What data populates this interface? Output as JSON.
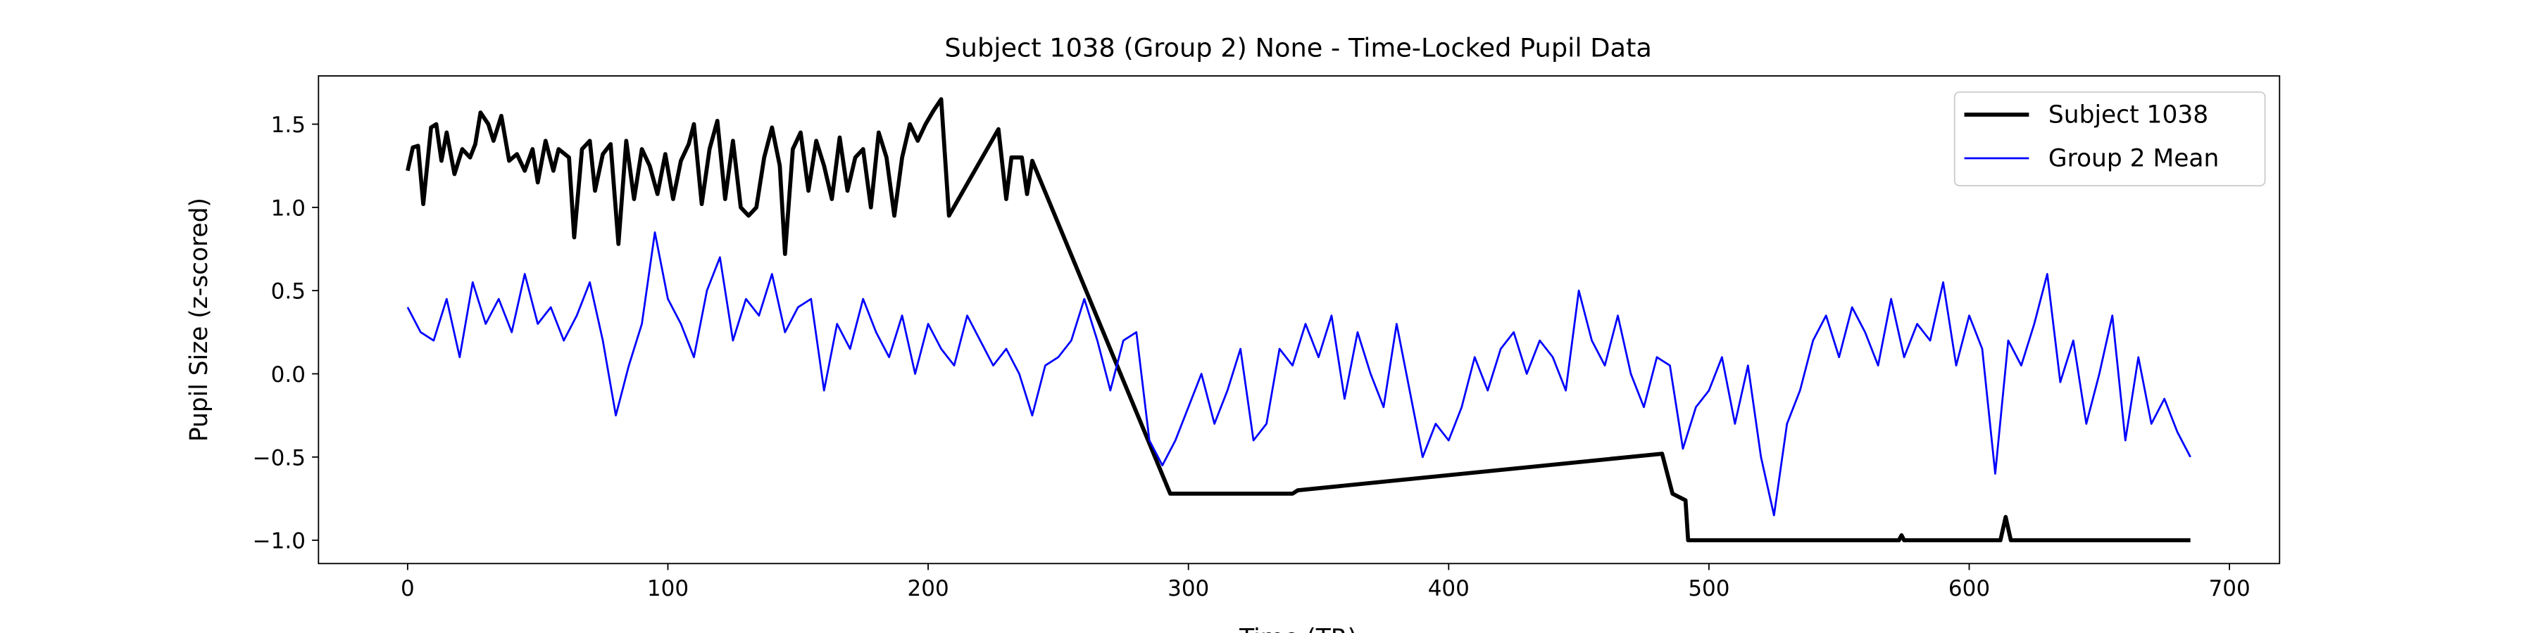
{
  "chart_data": {
    "type": "line",
    "title": "Subject 1038 (Group 2) None - Time-Locked Pupil Data",
    "x_label": "Time (TR)",
    "y_label": "Pupil Size (z-scored)",
    "xlim": [
      -34.25,
      719.25
    ],
    "ylim": [
      -1.14,
      1.79
    ],
    "xticks": [
      0,
      100,
      200,
      300,
      400,
      500,
      600,
      700
    ],
    "yticks": [
      {
        "value": -1.0,
        "label": "−1.0"
      },
      {
        "value": -0.5,
        "label": "−0.5"
      },
      {
        "value": 0.0,
        "label": "0.0"
      },
      {
        "value": 0.5,
        "label": "0.5"
      },
      {
        "value": 1.0,
        "label": "1.0"
      },
      {
        "value": 1.5,
        "label": "1.5"
      }
    ],
    "legend": "upper right",
    "grid": false,
    "series": [
      {
        "name": "Subject 1038",
        "color": "#000000",
        "linewidth": 2.5,
        "x": [
          0,
          2,
          4,
          6,
          9,
          11,
          13,
          15,
          18,
          21,
          24,
          26,
          28,
          31,
          33,
          36,
          39,
          42,
          45,
          48,
          50,
          53,
          56,
          58,
          62,
          64,
          67,
          70,
          72,
          75,
          78,
          81,
          84,
          87,
          90,
          93,
          96,
          99,
          102,
          105,
          108,
          110,
          113,
          116,
          119,
          122,
          125,
          128,
          131,
          134,
          137,
          140,
          143,
          145,
          148,
          151,
          154,
          157,
          160,
          163,
          166,
          169,
          172,
          175,
          178,
          181,
          184,
          187,
          190,
          193,
          196,
          199,
          202,
          205,
          208,
          227,
          230,
          232,
          236,
          238,
          240,
          293,
          340,
          342,
          482,
          486,
          491,
          492,
          500,
          573,
          574,
          575,
          612,
          614,
          616,
          685
        ],
        "values": [
          1.22,
          1.36,
          1.37,
          1.02,
          1.48,
          1.5,
          1.28,
          1.45,
          1.2,
          1.35,
          1.3,
          1.38,
          1.57,
          1.5,
          1.4,
          1.55,
          1.28,
          1.32,
          1.22,
          1.35,
          1.15,
          1.4,
          1.22,
          1.35,
          1.3,
          0.82,
          1.35,
          1.4,
          1.1,
          1.32,
          1.38,
          0.78,
          1.4,
          1.05,
          1.35,
          1.25,
          1.08,
          1.32,
          1.05,
          1.28,
          1.38,
          1.5,
          1.02,
          1.35,
          1.52,
          1.05,
          1.4,
          1.0,
          0.95,
          1.0,
          1.3,
          1.48,
          1.25,
          0.72,
          1.35,
          1.45,
          1.1,
          1.4,
          1.25,
          1.05,
          1.42,
          1.1,
          1.3,
          1.35,
          1.0,
          1.45,
          1.3,
          0.95,
          1.3,
          1.5,
          1.4,
          1.5,
          1.58,
          1.65,
          0.95,
          1.47,
          1.05,
          1.3,
          1.3,
          1.08,
          1.28,
          -0.72,
          -0.72,
          -0.7,
          -0.48,
          -0.72,
          -0.76,
          -1.0,
          -1.0,
          -1.0,
          -0.97,
          -1.0,
          -1.0,
          -0.86,
          -1.0,
          -1.0
        ]
      },
      {
        "name": "Group 2 Mean",
        "color": "#0000ff",
        "linewidth": 1.2,
        "x": [
          0,
          5,
          10,
          15,
          20,
          25,
          30,
          35,
          40,
          45,
          50,
          55,
          60,
          65,
          70,
          75,
          80,
          85,
          90,
          95,
          100,
          105,
          110,
          115,
          120,
          125,
          130,
          135,
          140,
          145,
          150,
          155,
          160,
          165,
          170,
          175,
          180,
          185,
          190,
          195,
          200,
          205,
          210,
          215,
          220,
          225,
          230,
          235,
          240,
          245,
          250,
          255,
          260,
          265,
          270,
          275,
          280,
          285,
          290,
          295,
          300,
          305,
          310,
          315,
          320,
          325,
          330,
          335,
          340,
          345,
          350,
          355,
          360,
          365,
          370,
          375,
          380,
          385,
          390,
          395,
          400,
          405,
          410,
          415,
          420,
          425,
          430,
          435,
          440,
          445,
          450,
          455,
          460,
          465,
          470,
          475,
          480,
          485,
          490,
          495,
          500,
          505,
          510,
          515,
          520,
          525,
          530,
          535,
          540,
          545,
          550,
          555,
          560,
          565,
          570,
          575,
          580,
          585,
          590,
          595,
          600,
          605,
          610,
          615,
          620,
          625,
          630,
          635,
          640,
          645,
          650,
          655,
          660,
          665,
          670,
          675,
          680,
          685
        ],
        "values": [
          0.4,
          0.25,
          0.2,
          0.45,
          0.1,
          0.55,
          0.3,
          0.45,
          0.25,
          0.6,
          0.3,
          0.4,
          0.2,
          0.35,
          0.55,
          0.2,
          -0.25,
          0.05,
          0.3,
          0.85,
          0.45,
          0.3,
          0.1,
          0.5,
          0.7,
          0.2,
          0.45,
          0.35,
          0.6,
          0.25,
          0.4,
          0.45,
          -0.1,
          0.3,
          0.15,
          0.45,
          0.25,
          0.1,
          0.35,
          0.0,
          0.3,
          0.15,
          0.05,
          0.35,
          0.2,
          0.05,
          0.15,
          0.0,
          -0.25,
          0.05,
          0.1,
          0.2,
          0.45,
          0.2,
          -0.1,
          0.2,
          0.25,
          -0.4,
          -0.55,
          -0.4,
          -0.2,
          0.0,
          -0.3,
          -0.1,
          0.15,
          -0.4,
          -0.3,
          0.15,
          0.05,
          0.3,
          0.1,
          0.35,
          -0.15,
          0.25,
          0.0,
          -0.2,
          0.3,
          -0.1,
          -0.5,
          -0.3,
          -0.4,
          -0.2,
          0.1,
          -0.1,
          0.15,
          0.25,
          0.0,
          0.2,
          0.1,
          -0.1,
          0.5,
          0.2,
          0.05,
          0.35,
          0.0,
          -0.2,
          0.1,
          0.05,
          -0.45,
          -0.2,
          -0.1,
          0.1,
          -0.3,
          0.05,
          -0.5,
          -0.85,
          -0.3,
          -0.1,
          0.2,
          0.35,
          0.1,
          0.4,
          0.25,
          0.05,
          0.45,
          0.1,
          0.3,
          0.2,
          0.55,
          0.05,
          0.35,
          0.15,
          -0.6,
          0.2,
          0.05,
          0.3,
          0.6,
          -0.05,
          0.2,
          -0.3,
          0.0,
          0.35,
          -0.4,
          0.1,
          -0.3,
          -0.15,
          -0.35,
          -0.5
        ]
      }
    ]
  }
}
